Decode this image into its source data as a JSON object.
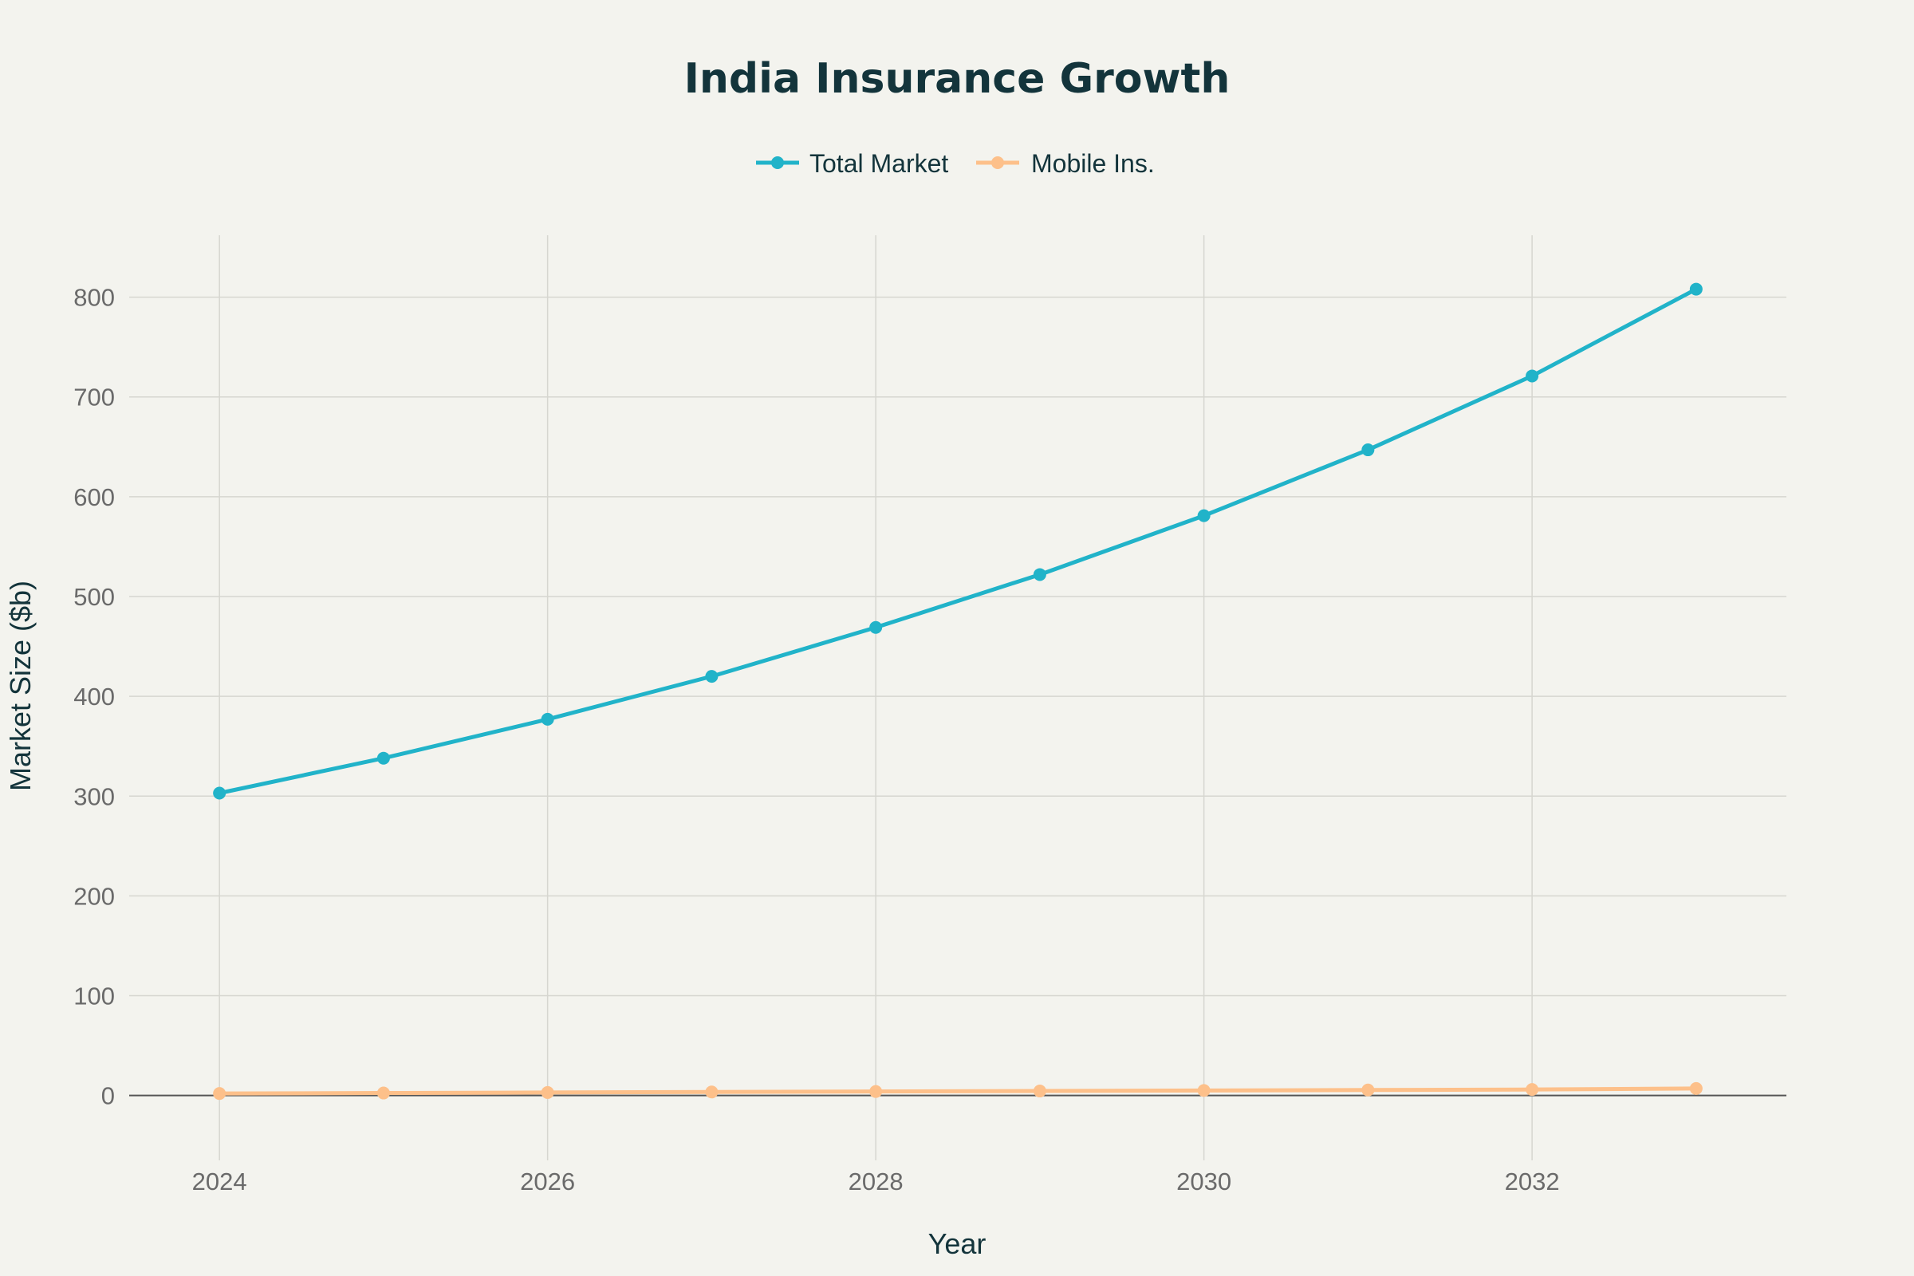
{
  "chart_data": {
    "type": "line",
    "title": "India Insurance Growth",
    "xlabel": "Year",
    "ylabel": "Market Size ($b)",
    "x": [
      2024,
      2025,
      2026,
      2027,
      2028,
      2029,
      2030,
      2031,
      2032,
      2033
    ],
    "x_ticks": [
      2024,
      2026,
      2028,
      2030,
      2032
    ],
    "y_ticks": [
      0,
      100,
      200,
      300,
      400,
      500,
      600,
      700,
      800
    ],
    "xlim": [
      2023.45,
      2033.55
    ],
    "ylim": [
      -65,
      862
    ],
    "grid": true,
    "legend_position": "top-center",
    "series": [
      {
        "name": "Total Market",
        "color": "#21b3c9",
        "values": [
          303,
          338,
          377,
          420,
          469,
          522,
          581,
          647,
          721,
          808
        ]
      },
      {
        "name": "Mobile Ins.",
        "color": "#fdc08a",
        "values": [
          2,
          2.5,
          3,
          3.5,
          4,
          4.5,
          5,
          5.5,
          6,
          7
        ]
      }
    ]
  }
}
